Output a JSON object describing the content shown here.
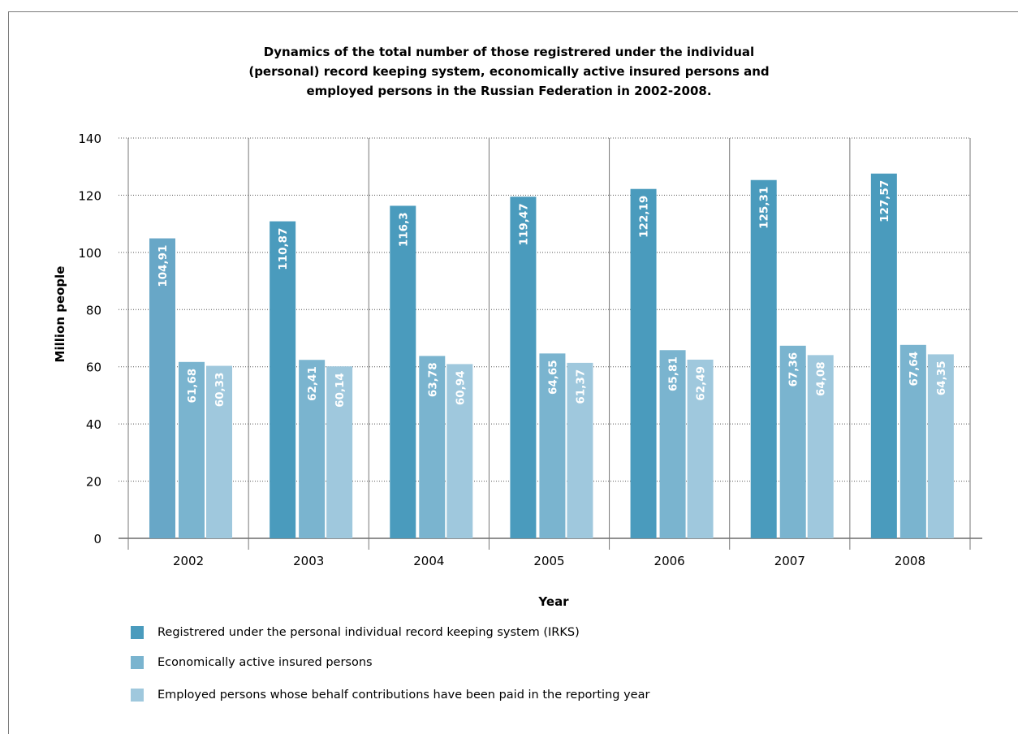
{
  "chart_data": {
    "type": "bar",
    "title": "Dynamics of the total number of those registrered under the individual\n(personal) record keeping system, economically active insured persons and\nemployed persons in the Russian Federation in 2002-2008.",
    "xlabel": "Year",
    "ylabel": "Million people",
    "ylim": [
      0,
      140
    ],
    "yticks": [
      "0",
      "20",
      "40",
      "60",
      "80",
      "100",
      "120",
      "140"
    ],
    "categories": [
      "2002",
      "2003",
      "2004",
      "2005",
      "2006",
      "2007",
      "2008"
    ],
    "grid": true,
    "legend_position": "bottom",
    "series": [
      {
        "name": "Registrered under the personal individual record keeping system (IRKS)",
        "color": "#4a9bbd",
        "values": [
          104.91,
          110.87,
          116.3,
          119.47,
          122.19,
          125.31,
          127.57
        ],
        "labels": [
          "104,91",
          "110,87",
          "116,3",
          "119,47",
          "122,19",
          "125,31",
          "127,57"
        ]
      },
      {
        "name": "Economically active insured persons",
        "color": "#7ab4cf",
        "values": [
          61.68,
          62.41,
          63.78,
          64.65,
          65.81,
          67.36,
          67.64
        ],
        "labels": [
          "61,68",
          "62,41",
          "63,78",
          "64,65",
          "65,81",
          "67,36",
          "67,64"
        ]
      },
      {
        "name": "Employed persons whose behalf contributions have been paid in the reporting year",
        "color": "#9fc8dd",
        "values": [
          60.33,
          60.14,
          60.94,
          61.37,
          62.49,
          64.08,
          64.35
        ],
        "labels": [
          "60,33",
          "60,14",
          "60,94",
          "61,37",
          "62,49",
          "64,08",
          "64,35"
        ]
      }
    ],
    "first_bar_color": "#68a7c7"
  }
}
